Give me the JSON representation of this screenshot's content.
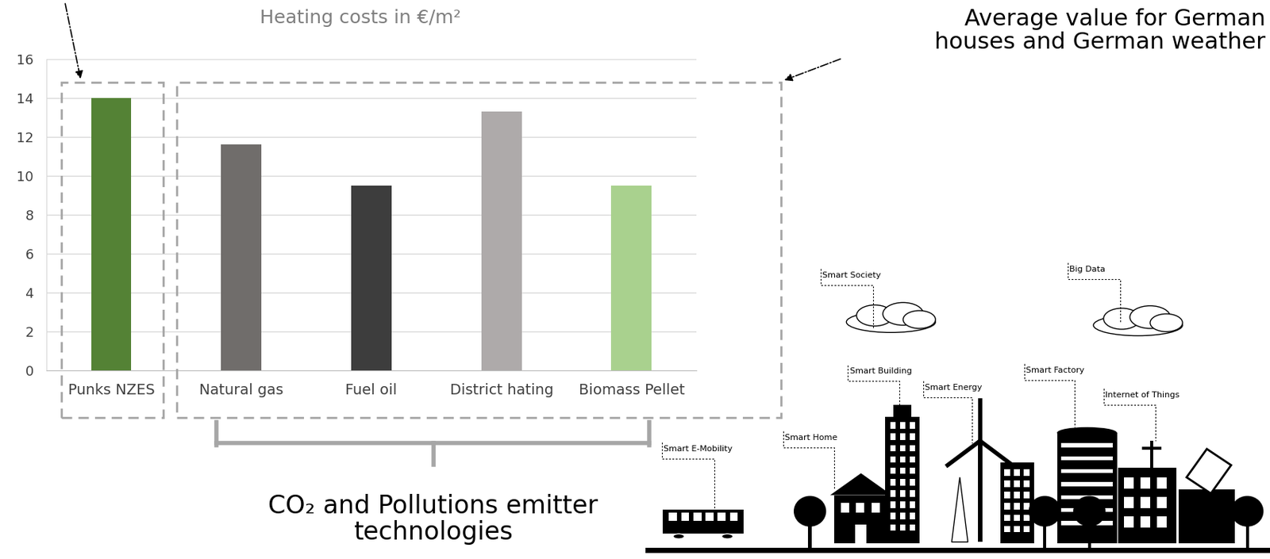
{
  "chart_data": {
    "type": "bar",
    "title": "Heating costs in €/m²",
    "categories": [
      "Punks NZES",
      "Natural gas",
      "Fuel oil",
      "District hating",
      "Biomass Pellet"
    ],
    "values": [
      14,
      11.6,
      9.5,
      13.3,
      9.5
    ],
    "colors": [
      "#548235",
      "#706d6b",
      "#3d3d3d",
      "#aeaaaa",
      "#a9d18e"
    ],
    "ylim": [
      0,
      16
    ],
    "yticks": [
      0,
      2,
      4,
      6,
      8,
      10,
      12,
      14,
      16
    ],
    "grid": true,
    "annotations": {
      "average": "Average value for German\nhouses and German weather",
      "emitters": "CO₂ and Pollutions emitter\ntechnologies",
      "smart_society": "Smart Society",
      "big_data": "Big Data",
      "smart_building": "Smart Building",
      "smart_energy": "Smart Energy",
      "smart_factory": "Smart Factory",
      "iot": "Internet of Things",
      "smart_home": "Smart Home",
      "smart_emobility": "Smart E-Mobility"
    }
  }
}
